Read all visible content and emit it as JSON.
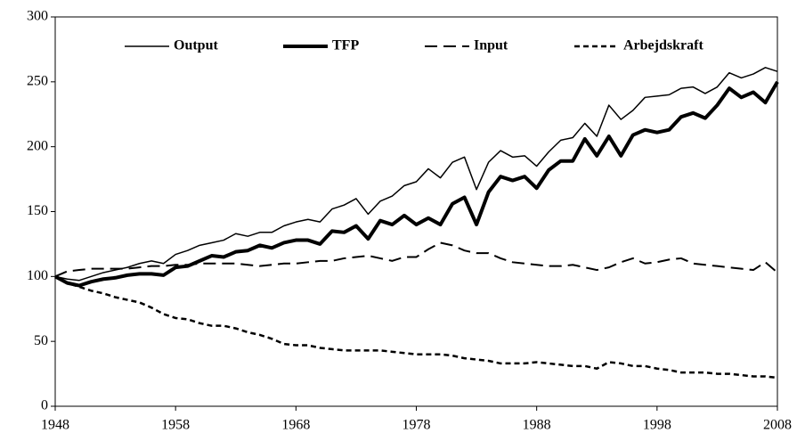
{
  "chart_data": {
    "type": "line",
    "x": [
      1948,
      1949,
      1950,
      1951,
      1952,
      1953,
      1954,
      1955,
      1956,
      1957,
      1958,
      1959,
      1960,
      1961,
      1962,
      1963,
      1964,
      1965,
      1966,
      1967,
      1968,
      1969,
      1970,
      1971,
      1972,
      1973,
      1974,
      1975,
      1976,
      1977,
      1978,
      1979,
      1980,
      1981,
      1982,
      1983,
      1984,
      1985,
      1986,
      1987,
      1988,
      1989,
      1990,
      1991,
      1992,
      1993,
      1994,
      1995,
      1996,
      1997,
      1998,
      1999,
      2000,
      2001,
      2002,
      2003,
      2004,
      2005,
      2006,
      2007,
      2008
    ],
    "series": [
      {
        "name": "Output",
        "color": "#000000",
        "width": 1.5,
        "dash": "solid",
        "values": [
          100,
          98,
          97,
          100,
          103,
          105,
          107,
          110,
          112,
          110,
          117,
          120,
          124,
          126,
          128,
          133,
          131,
          134,
          134,
          139,
          142,
          144,
          142,
          152,
          155,
          160,
          148,
          158,
          162,
          170,
          173,
          183,
          176,
          188,
          192,
          167,
          188,
          197,
          192,
          193,
          185,
          196,
          205,
          207,
          218,
          208,
          232,
          221,
          228,
          238,
          239,
          240,
          245,
          246,
          241,
          246,
          257,
          253,
          256,
          261,
          258
        ]
      },
      {
        "name": "TFP",
        "color": "#000000",
        "width": 4,
        "dash": "solid",
        "values": [
          100,
          95,
          93,
          96,
          98,
          99,
          101,
          102,
          102,
          101,
          107,
          108,
          112,
          116,
          115,
          119,
          120,
          124,
          122,
          126,
          128,
          128,
          125,
          135,
          134,
          139,
          129,
          143,
          140,
          147,
          140,
          145,
          140,
          156,
          161,
          140,
          165,
          177,
          174,
          177,
          168,
          182,
          189,
          189,
          206,
          193,
          208,
          193,
          209,
          213,
          211,
          213,
          223,
          226,
          222,
          232,
          245,
          238,
          242,
          234,
          250
        ]
      },
      {
        "name": "Input",
        "color": "#000000",
        "width": 2,
        "dash": "dashed",
        "values": [
          100,
          104,
          105,
          106,
          106,
          106,
          106,
          107,
          108,
          108,
          109,
          109,
          110,
          110,
          110,
          110,
          109,
          108,
          109,
          110,
          110,
          111,
          112,
          112,
          114,
          115,
          116,
          114,
          112,
          115,
          115,
          121,
          126,
          124,
          120,
          118,
          118,
          114,
          111,
          110,
          109,
          108,
          108,
          109,
          107,
          105,
          107,
          111,
          114,
          110,
          111,
          113,
          114,
          110,
          109,
          108,
          107,
          106,
          105,
          111,
          103
        ]
      },
      {
        "name": "Arbejdskraft",
        "color": "#000000",
        "width": 2.5,
        "dash": "dotted",
        "values": [
          100,
          95,
          92,
          89,
          87,
          84,
          82,
          80,
          76,
          71,
          68,
          67,
          64,
          62,
          62,
          60,
          57,
          55,
          52,
          48,
          47,
          47,
          45,
          44,
          43,
          43,
          43,
          43,
          42,
          41,
          40,
          40,
          40,
          39,
          37,
          36,
          35,
          33,
          33,
          33,
          34,
          33,
          32,
          31,
          31,
          29,
          34,
          33,
          31,
          31,
          29,
          28,
          26,
          26,
          26,
          25,
          25,
          24,
          23,
          23,
          22
        ]
      }
    ],
    "xlim": [
      1948,
      2008
    ],
    "xticks": [
      1948,
      1958,
      1968,
      1978,
      1988,
      1998,
      2008
    ],
    "ylim": [
      0,
      300
    ],
    "yticks": [
      0,
      50,
      100,
      150,
      200,
      250,
      300
    ],
    "legend": "top"
  }
}
